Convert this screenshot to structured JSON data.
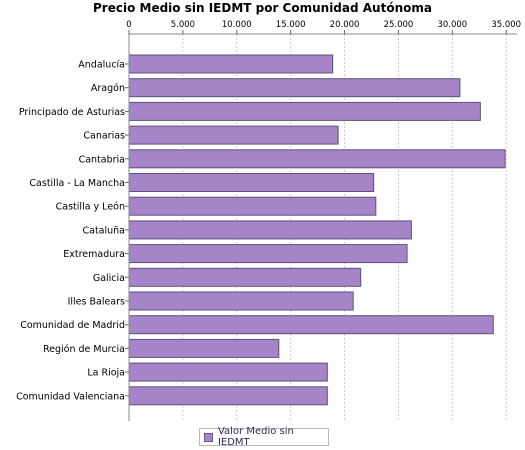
{
  "chart_data": {
    "type": "bar",
    "orientation": "horizontal",
    "title": "Precio Medio sin IEDMT por Comunidad Autónoma",
    "categories": [
      "Andalucía",
      "Aragón",
      "Principado de Asturias",
      "Canarias",
      "Cantabria",
      "Castilla - La Mancha",
      "Castilla y León",
      "Cataluña",
      "Extremadura",
      "Galicia",
      "Illes Balears",
      "Comunidad de Madrid",
      "Región de Murcia",
      "La Rioja",
      "Comunidad Valenciana"
    ],
    "series": [
      {
        "name": "Valor Medio sin IEDMT",
        "color": "#a585c8",
        "values": [
          18900,
          30700,
          32600,
          19400,
          34900,
          22700,
          22900,
          26200,
          25800,
          21500,
          20800,
          33800,
          13900,
          18400,
          18400
        ]
      }
    ],
    "xlim": [
      0,
      36000
    ],
    "xticks": [
      0,
      5000,
      10000,
      15000,
      20000,
      25000,
      30000,
      35000
    ],
    "xtick_labels": [
      "0",
      "5.000",
      "10.000",
      "15.000",
      "20.000",
      "25.000",
      "30.000",
      "35.000"
    ],
    "x_axis_position": "top",
    "grid": true,
    "legend_position": "bottom"
  }
}
